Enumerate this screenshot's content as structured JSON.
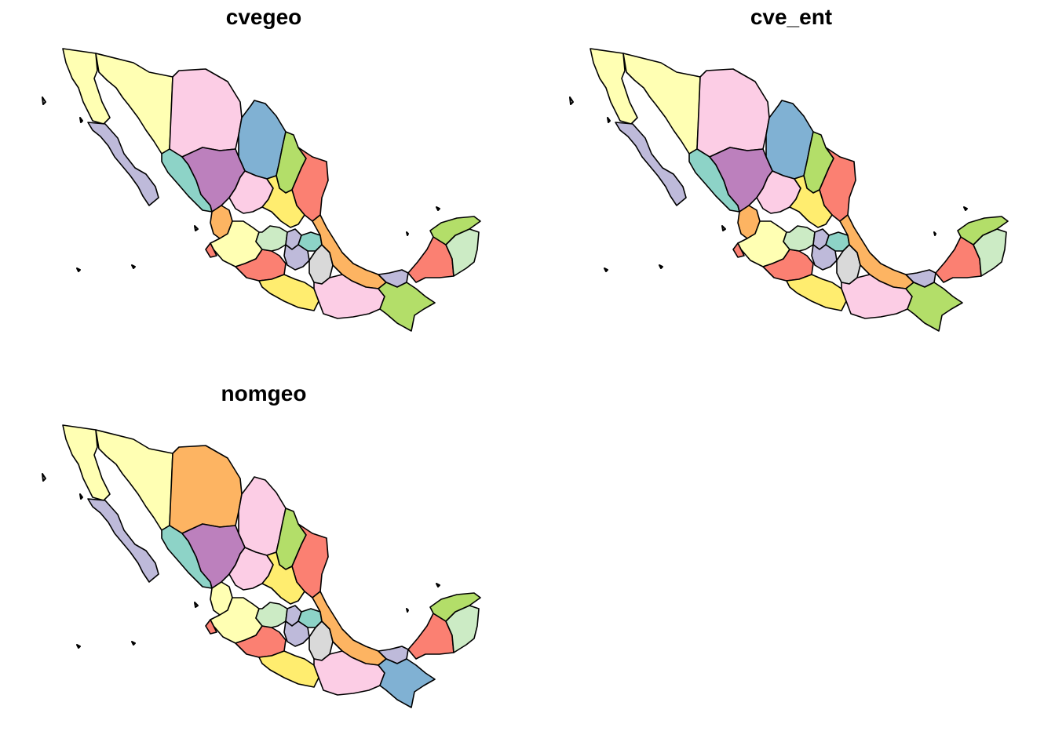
{
  "figure": {
    "panels": [
      {
        "id": "cvegeo",
        "title": "cvegeo",
        "state_colors": [
          "#FFFFB3",
          "#BEBADA",
          "#FFFFB3",
          "#FCCDE5",
          "#80B1D3",
          "#8DD3C7",
          "#BC80BD",
          "#B3DE69",
          "#FB8072",
          "#FCCDE5",
          "#FFED6F",
          "#FDB462",
          "#FFFFB3",
          "#FB8072",
          "#CCEBC5",
          "#BEBADA",
          "#8DD3C7",
          "#BEBADA",
          "#D9D9D9",
          "#FDB462",
          "#FFED6F",
          "#FCCDE5",
          "#BEBADA",
          "#B3DE69",
          "#FB8072",
          "#CCEBC5",
          "#B3DE69",
          "#FB8072"
        ]
      },
      {
        "id": "cve_ent",
        "title": "cve_ent",
        "state_colors": [
          "#FFFFB3",
          "#BEBADA",
          "#FFFFB3",
          "#FCCDE5",
          "#80B1D3",
          "#8DD3C7",
          "#BC80BD",
          "#B3DE69",
          "#FB8072",
          "#FCCDE5",
          "#FFED6F",
          "#FDB462",
          "#FFFFB3",
          "#FB8072",
          "#CCEBC5",
          "#BEBADA",
          "#8DD3C7",
          "#BEBADA",
          "#D9D9D9",
          "#FDB462",
          "#FFED6F",
          "#FCCDE5",
          "#BEBADA",
          "#B3DE69",
          "#FB8072",
          "#CCEBC5",
          "#B3DE69",
          "#FB8072"
        ]
      },
      {
        "id": "nomgeo",
        "title": "nomgeo",
        "state_colors": [
          "#FFFFB3",
          "#BEBADA",
          "#FFFFB3",
          "#FDB462",
          "#FCCDE5",
          "#8DD3C7",
          "#BC80BD",
          "#B3DE69",
          "#FB8072",
          "#FCCDE5",
          "#FFED6F",
          "#FFFFB3",
          "#FFFFB3",
          "#FB8072",
          "#CCEBC5",
          "#BEBADA",
          "#8DD3C7",
          "#BEBADA",
          "#D9D9D9",
          "#FDB462",
          "#FFED6F",
          "#FCCDE5",
          "#BEBADA",
          "#80B1D3",
          "#FB8072",
          "#CCEBC5",
          "#B3DE69",
          "#FB8072"
        ]
      }
    ]
  }
}
